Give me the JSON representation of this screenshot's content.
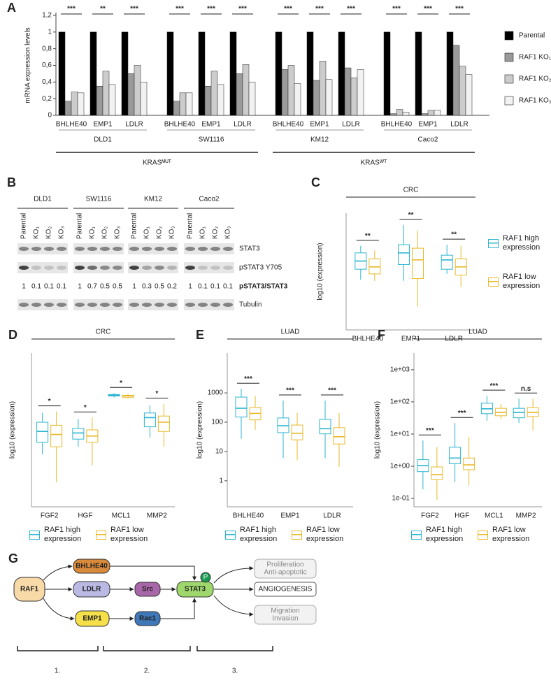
{
  "chart_data": [
    {
      "label": "A",
      "type": "grouped-bar",
      "ylabel": "mRNA expression levels",
      "categories": [
        "BHLHE40",
        "EMP1",
        "LDLR",
        "BHLHE40",
        "EMP1",
        "LDLR",
        "BHLHE40",
        "EMP1",
        "LDLR",
        "BHLHE40",
        "EMP1",
        "LDLR"
      ],
      "groups": [
        "DLD1",
        "SW1116",
        "KM12",
        "Caco2"
      ],
      "supergroups": [
        "KRASᴹᵁᵀ",
        "KRASᵂᵀ"
      ],
      "annotations": [
        "***",
        "**",
        "***",
        "***",
        "***",
        "***",
        "***",
        "***",
        "***",
        "***",
        "***",
        "***"
      ],
      "series": [
        {
          "name": "Parental",
          "color": "#000000",
          "values": [
            1,
            1,
            1,
            1,
            1,
            1,
            1,
            1,
            1,
            1,
            1,
            1
          ]
        },
        {
          "name": "RAF1 KO₁",
          "color": "#9a9a9a",
          "values": [
            0.17,
            0.35,
            0.5,
            0.17,
            0.35,
            0.5,
            0.55,
            0.42,
            0.57,
            0.02,
            0.02,
            0.84
          ]
        },
        {
          "name": "RAF1 KO₂",
          "color": "#cccccc",
          "values": [
            0.28,
            0.53,
            0.6,
            0.27,
            0.53,
            0.61,
            0.6,
            0.65,
            0.45,
            0.07,
            0.06,
            0.59
          ]
        },
        {
          "name": "RAF1 KO₃",
          "color": "#f2f2f2",
          "values": [
            0.27,
            0.37,
            0.4,
            0.27,
            0.37,
            0.4,
            0.38,
            0.43,
            0.55,
            0.04,
            0.06,
            0.49
          ]
        }
      ],
      "ylim": [
        0,
        1.2
      ],
      "yticks": [
        0,
        {
          "value": 0.2,
          "label": "0,2"
        },
        {
          "value": 0.4,
          "label": "0,4"
        },
        {
          "value": 0.6,
          "label": "0,6"
        },
        {
          "value": 0.8,
          "label": "0,8"
        },
        1,
        {
          "value": 1.2,
          "label": "1,2"
        }
      ]
    },
    {
      "label": "C",
      "type": "box",
      "title": "CRC",
      "ylabel": "log10 (expression)",
      "categories": [
        "BHLHE40",
        "EMP1",
        "LDLR"
      ],
      "annotations": [
        "**",
        "**",
        "**"
      ],
      "series": [
        {
          "name": "RAF1 high expression",
          "color": "#2cb5d1",
          "values": [
            {
              "min": 4.3,
              "q1": 5.2,
              "median": 5.9,
              "q3": 6.6,
              "max": 7.2
            },
            {
              "min": 4.2,
              "q1": 5.6,
              "median": 6.6,
              "q3": 7.3,
              "max": 9.0
            },
            {
              "min": 4.8,
              "q1": 5.2,
              "median": 6.0,
              "q3": 6.4,
              "max": 7.3
            }
          ]
        },
        {
          "name": "RAF1 low expression",
          "color": "#e8b92a",
          "values": [
            {
              "min": 4.2,
              "q1": 4.8,
              "median": 5.4,
              "q3": 6.1,
              "max": 6.8
            },
            {
              "min": 2.0,
              "q1": 4.4,
              "median": 6.0,
              "q3": 7.0,
              "max": 8.5
            },
            {
              "min": 3.7,
              "q1": 4.7,
              "median": 5.4,
              "q3": 6.1,
              "max": 7.2
            }
          ]
        }
      ],
      "ylim": [
        0,
        10
      ]
    },
    {
      "label": "D",
      "type": "box",
      "title": "CRC",
      "ylabel": "log10 (expression)",
      "categories": [
        "FGF2",
        "HGF",
        "MCL1",
        "MMP2"
      ],
      "annotations": [
        "*",
        "*",
        "*",
        "*"
      ],
      "series": [
        {
          "name": "RAF1 high expression",
          "color": "#2cb5d1",
          "values": [
            {
              "min": 3.4,
              "q1": 4.2,
              "median": 4.9,
              "q3": 5.5,
              "max": 6.1
            },
            {
              "min": 3.9,
              "q1": 4.4,
              "median": 4.8,
              "q3": 5.1,
              "max": 5.7
            },
            {
              "min": 7.1,
              "q1": 7.2,
              "median": 7.25,
              "q3": 7.3,
              "max": 7.4
            },
            {
              "min": 4.5,
              "q1": 5.2,
              "median": 5.8,
              "q3": 6.1,
              "max": 6.6
            }
          ]
        },
        {
          "name": "RAF1 low expression",
          "color": "#e8b92a",
          "values": [
            {
              "min": 1.6,
              "q1": 3.9,
              "median": 4.7,
              "q3": 5.3,
              "max": 6.2
            },
            {
              "min": 2.7,
              "q1": 4.2,
              "median": 4.6,
              "q3": 5.0,
              "max": 5.8
            },
            {
              "min": 7.05,
              "q1": 7.1,
              "median": 7.2,
              "q3": 7.25,
              "max": 7.35
            },
            {
              "min": 3.9,
              "q1": 4.9,
              "median": 5.5,
              "q3": 5.9,
              "max": 6.7
            }
          ]
        }
      ],
      "ylim": [
        0,
        10
      ]
    },
    {
      "label": "E",
      "type": "box",
      "title": "LUAD",
      "ylabel": "log10 (expression)",
      "log": true,
      "categories": [
        "BHLHE40",
        "EMP1",
        "LDLR"
      ],
      "annotations": [
        "***",
        "***",
        "***"
      ],
      "series": [
        {
          "name": "RAF1 high expression",
          "color": "#2cb5d1",
          "values": [
            {
              "min": 27,
              "q1": 150,
              "median": 300,
              "q3": 720,
              "max": 1380
            },
            {
              "min": 6,
              "q1": 44,
              "median": 76,
              "q3": 140,
              "max": 550
            },
            {
              "min": 6,
              "q1": 40,
              "median": 60,
              "q3": 125,
              "max": 550
            }
          ]
        },
        {
          "name": "RAF1 low expression",
          "color": "#e8b92a",
          "values": [
            {
              "min": 55,
              "q1": 120,
              "median": 200,
              "q3": 320,
              "max": 800
            },
            {
              "min": 5,
              "q1": 25,
              "median": 42,
              "q3": 80,
              "max": 210
            },
            {
              "min": 3,
              "q1": 18,
              "median": 32,
              "q3": 65,
              "max": 210
            }
          ]
        }
      ],
      "ylim": [
        0.13,
        23000
      ],
      "yticks": [
        1,
        10,
        100,
        1000
      ]
    },
    {
      "label": "F",
      "type": "box",
      "title": "LUAD",
      "ylabel": "log10 (expression)",
      "log": true,
      "categories": [
        "FGF2",
        "HGF",
        "MCL1",
        "MMP2"
      ],
      "annotations": [
        "***",
        "***",
        "***",
        "n.s"
      ],
      "series": [
        {
          "name": "RAF1 high expression",
          "color": "#2cb5d1",
          "values": [
            {
              "min": 0.19,
              "q1": 0.68,
              "median": 1.05,
              "q3": 1.6,
              "max": 6.3
            },
            {
              "min": 0.32,
              "q1": 1.2,
              "median": 1.8,
              "q3": 3.9,
              "max": 22
            },
            {
              "min": 26,
              "q1": 43,
              "median": 61,
              "q3": 91,
              "max": 155
            },
            {
              "min": 22,
              "q1": 32,
              "median": 47,
              "q3": 63,
              "max": 126
            }
          ]
        },
        {
          "name": "RAF1 low expression",
          "color": "#e8b92a",
          "values": [
            {
              "min": 0.09,
              "q1": 0.39,
              "median": 0.55,
              "q3": 0.95,
              "max": 3.9
            },
            {
              "min": 0.25,
              "q1": 0.78,
              "median": 1.1,
              "q3": 1.8,
              "max": 8.2
            },
            {
              "min": 29,
              "q1": 37,
              "median": 47,
              "q3": 63,
              "max": 86
            },
            {
              "min": 13,
              "q1": 35,
              "median": 47,
              "q3": 67,
              "max": 126
            }
          ]
        }
      ],
      "ylim": [
        0.055,
        3300
      ],
      "yticks": [
        {
          "value": 0.1,
          "label": "1e-01"
        },
        {
          "value": 1,
          "label": "1e+00"
        },
        {
          "value": 10,
          "label": "1e+01"
        },
        {
          "value": 100,
          "label": "1e+02"
        },
        {
          "value": 1000,
          "label": "1e+03"
        }
      ]
    }
  ],
  "blot": {
    "label": "B",
    "cell_lines": [
      "DLD1",
      "SW1116",
      "KM12",
      "Caco2"
    ],
    "lanes": [
      "Parental",
      "KO₁",
      "KO₂",
      "KO₃"
    ],
    "rows": [
      "STAT3",
      "pSTAT3 Y705",
      "pSTAT3/STAT3",
      "Tubulin"
    ],
    "ratios": [
      [
        1,
        0.1,
        0.1,
        0.1
      ],
      [
        1,
        0.7,
        0.5,
        0.5
      ],
      [
        1,
        0.3,
        0.5,
        0.2
      ],
      [
        1,
        0.1,
        0.1,
        0.1
      ]
    ]
  },
  "diagram": {
    "label": "G",
    "nodes": [
      "RAF1",
      "BHLHE40",
      "LDLR",
      "EMP1",
      "Src",
      "Rac1",
      "STAT3",
      "P"
    ],
    "outputs": [
      [
        "Proliferation",
        "Anti-apoptotic"
      ],
      [
        "ANGIOGENESIS"
      ],
      [
        "Migration",
        "Invasion"
      ]
    ],
    "steps": [
      "1.",
      "2.",
      "3."
    ]
  }
}
